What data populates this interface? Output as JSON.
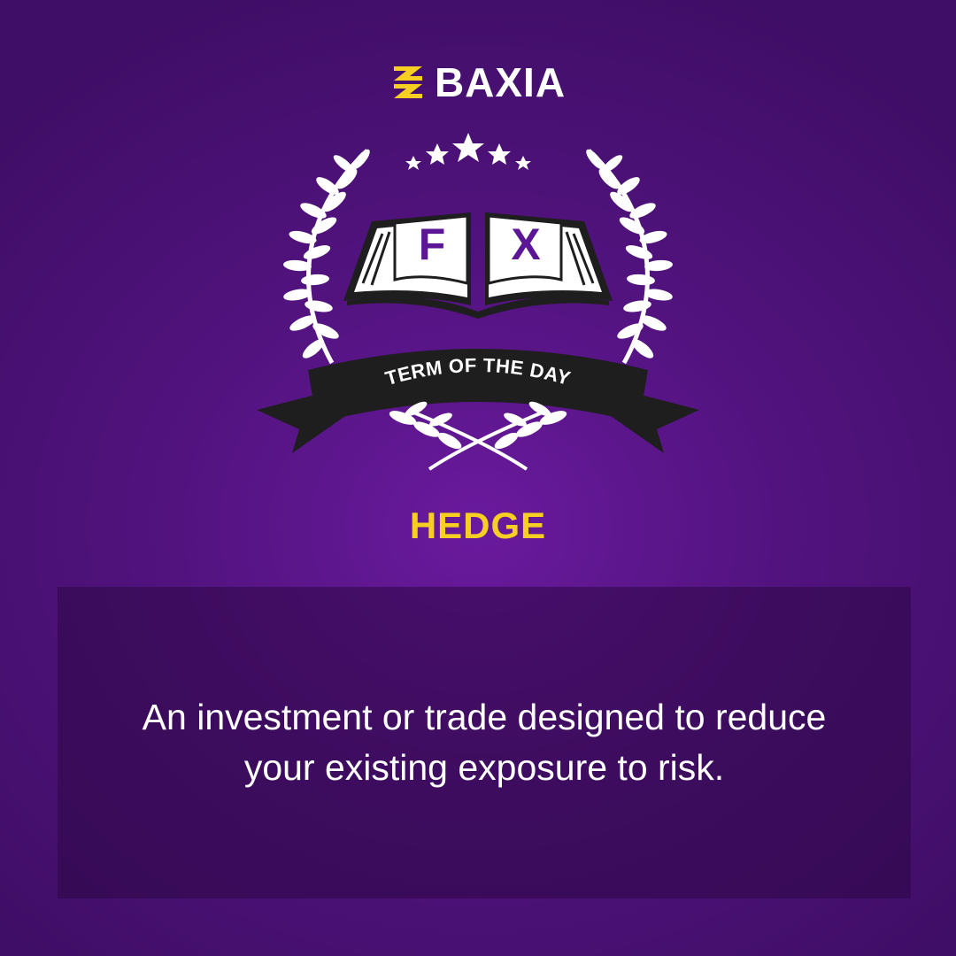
{
  "brand": {
    "name": "BAXIA",
    "icon": "baxia-logo-icon"
  },
  "emblem": {
    "book_letters": [
      "F",
      "X"
    ],
    "ribbon_text": "TERM OF THE DAY",
    "stars": 5
  },
  "term": "HEDGE",
  "definition": "An investment or trade designed to reduce your existing exposure to risk.",
  "colors": {
    "background": "#52137f",
    "accent_yellow": "#f6cf22",
    "book_letter": "#5a1694",
    "ribbon": "#1e1e1e"
  }
}
